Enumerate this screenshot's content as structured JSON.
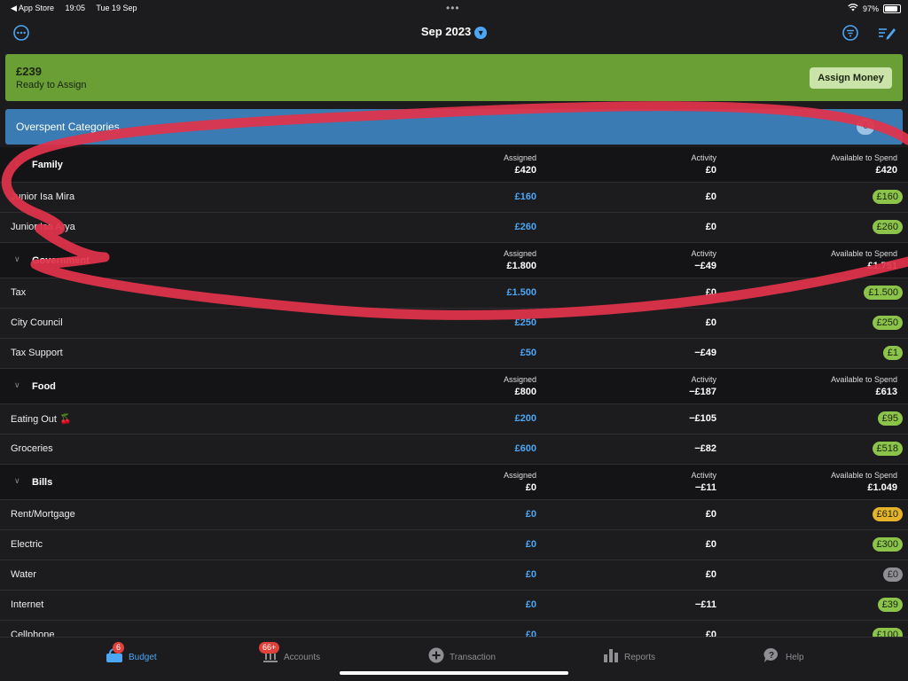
{
  "status_bar": {
    "back_app": "◀ App Store",
    "time": "19:05",
    "date": "Tue 19 Sep",
    "battery": "97%"
  },
  "header": {
    "title": "Sep 2023"
  },
  "ready_to_assign": {
    "amount": "£239",
    "label": "Ready to Assign",
    "button": "Assign Money"
  },
  "overspent": {
    "label": "Overspent Categories",
    "count": "6"
  },
  "column_labels": {
    "assigned": "Assigned",
    "activity": "Activity",
    "available": "Available to Spend"
  },
  "groups": [
    {
      "name": "Family",
      "assigned": "£420",
      "activity": "£0",
      "available": "£420",
      "categories": [
        {
          "name": "Junior Isa Mira",
          "assigned": "£160",
          "activity": "£0",
          "available": "£160",
          "status": "green"
        },
        {
          "name": "Junior Isa Arya",
          "assigned": "£260",
          "activity": "£0",
          "available": "£260",
          "status": "green"
        }
      ]
    },
    {
      "name": "Government",
      "assigned": "£1.800",
      "activity": "−£49",
      "available": "£1.751",
      "categories": [
        {
          "name": "Tax",
          "assigned": "£1.500",
          "activity": "£0",
          "available": "£1.500",
          "status": "green"
        },
        {
          "name": "City Council",
          "assigned": "£250",
          "activity": "£0",
          "available": "£250",
          "status": "green"
        },
        {
          "name": "Tax Support",
          "assigned": "£50",
          "activity": "−£49",
          "available": "£1",
          "status": "green"
        }
      ]
    },
    {
      "name": "Food",
      "assigned": "£800",
      "activity": "−£187",
      "available": "£613",
      "categories": [
        {
          "name": "Eating Out 🍒",
          "assigned": "£200",
          "activity": "−£105",
          "available": "£95",
          "status": "green"
        },
        {
          "name": "Groceries",
          "assigned": "£600",
          "activity": "−£82",
          "available": "£518",
          "status": "green"
        }
      ]
    },
    {
      "name": "Bills",
      "assigned": "£0",
      "activity": "−£11",
      "available": "£1.049",
      "categories": [
        {
          "name": "Rent/Mortgage",
          "assigned": "£0",
          "activity": "£0",
          "available": "£610",
          "status": "yellow"
        },
        {
          "name": "Electric",
          "assigned": "£0",
          "activity": "£0",
          "available": "£300",
          "status": "green"
        },
        {
          "name": "Water",
          "assigned": "£0",
          "activity": "£0",
          "available": "£0",
          "status": "gray"
        },
        {
          "name": "Internet",
          "assigned": "£0",
          "activity": "−£11",
          "available": "£39",
          "status": "green"
        },
        {
          "name": "Cellphone",
          "assigned": "£0",
          "activity": "£0",
          "available": "£100",
          "status": "green"
        }
      ]
    }
  ],
  "tabs": [
    {
      "label": "Budget",
      "icon": "budget-icon",
      "badge": "6",
      "active": true
    },
    {
      "label": "Accounts",
      "icon": "bank-icon",
      "badge": "66+",
      "active": false
    },
    {
      "label": "Transaction",
      "icon": "plus-circle-icon",
      "badge": "",
      "active": false
    },
    {
      "label": "Reports",
      "icon": "bar-chart-icon",
      "badge": "",
      "active": false
    },
    {
      "label": "Help",
      "icon": "help-icon",
      "badge": "",
      "active": false
    }
  ],
  "colors": {
    "accent": "#4da6f5",
    "ready_green": "#6a9f36",
    "overspent_blue": "#3a7bb3",
    "pill_green": "#8cc34a",
    "pill_yellow": "#e5b32b",
    "annotation_red": "#e0334a"
  }
}
